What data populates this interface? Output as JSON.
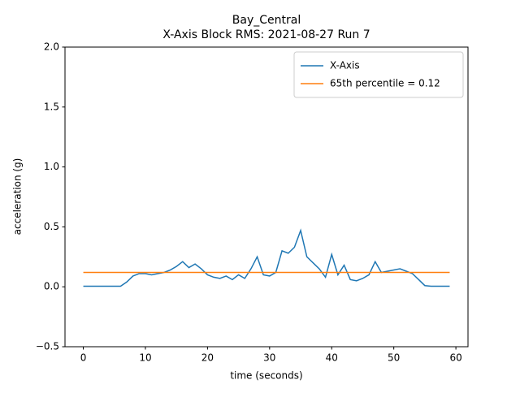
{
  "chart_data": {
    "type": "line",
    "title": [
      "Bay_Central",
      "X-Axis Block RMS: 2021-08-27 Run 7"
    ],
    "x_label": "time (seconds)",
    "y_label": "acceleration (g)",
    "xlim": [
      -2.95,
      61.95
    ],
    "ylim": [
      -0.5,
      2.0
    ],
    "xticks": [
      0,
      10,
      20,
      30,
      40,
      50,
      60
    ],
    "yticks": [
      {
        "value": -0.5,
        "label": "−0.5"
      },
      {
        "value": 0,
        "label": "0.0"
      },
      0.5,
      {
        "value": 1,
        "label": "1.0"
      },
      1.5,
      {
        "value": 2,
        "label": "2.0"
      }
    ],
    "legend": "upper right",
    "series": [
      {
        "name": "X-Axis",
        "color": "#1f77b4",
        "x": [
          0,
          1,
          2,
          3,
          4,
          5,
          6,
          7,
          8,
          9,
          10,
          11,
          12,
          13,
          14,
          15,
          16,
          17,
          18,
          19,
          20,
          21,
          22,
          23,
          24,
          25,
          26,
          27,
          28,
          29,
          30,
          31,
          32,
          33,
          34,
          35,
          36,
          37,
          38,
          39,
          40,
          41,
          42,
          43,
          44,
          45,
          46,
          47,
          48,
          49,
          50,
          51,
          52,
          53,
          54,
          55,
          56,
          57,
          58,
          59
        ],
        "values": [
          0.005,
          0.005,
          0.005,
          0.005,
          0.005,
          0.005,
          0.005,
          0.04,
          0.09,
          0.11,
          0.11,
          0.1,
          0.11,
          0.12,
          0.14,
          0.17,
          0.21,
          0.16,
          0.19,
          0.15,
          0.1,
          0.08,
          0.07,
          0.09,
          0.06,
          0.1,
          0.07,
          0.15,
          0.25,
          0.1,
          0.09,
          0.12,
          0.3,
          0.28,
          0.33,
          0.47,
          0.25,
          0.2,
          0.15,
          0.08,
          0.27,
          0.1,
          0.18,
          0.06,
          0.05,
          0.07,
          0.1,
          0.21,
          0.12,
          0.13,
          0.14,
          0.15,
          0.13,
          0.11,
          0.06,
          0.01,
          0.005,
          0.005,
          0.005,
          0.005
        ]
      },
      {
        "name": "65th percentile = 0.12",
        "color": "#ff7f0e",
        "x": [
          0,
          59
        ],
        "values": [
          0.12,
          0.12
        ]
      }
    ]
  }
}
